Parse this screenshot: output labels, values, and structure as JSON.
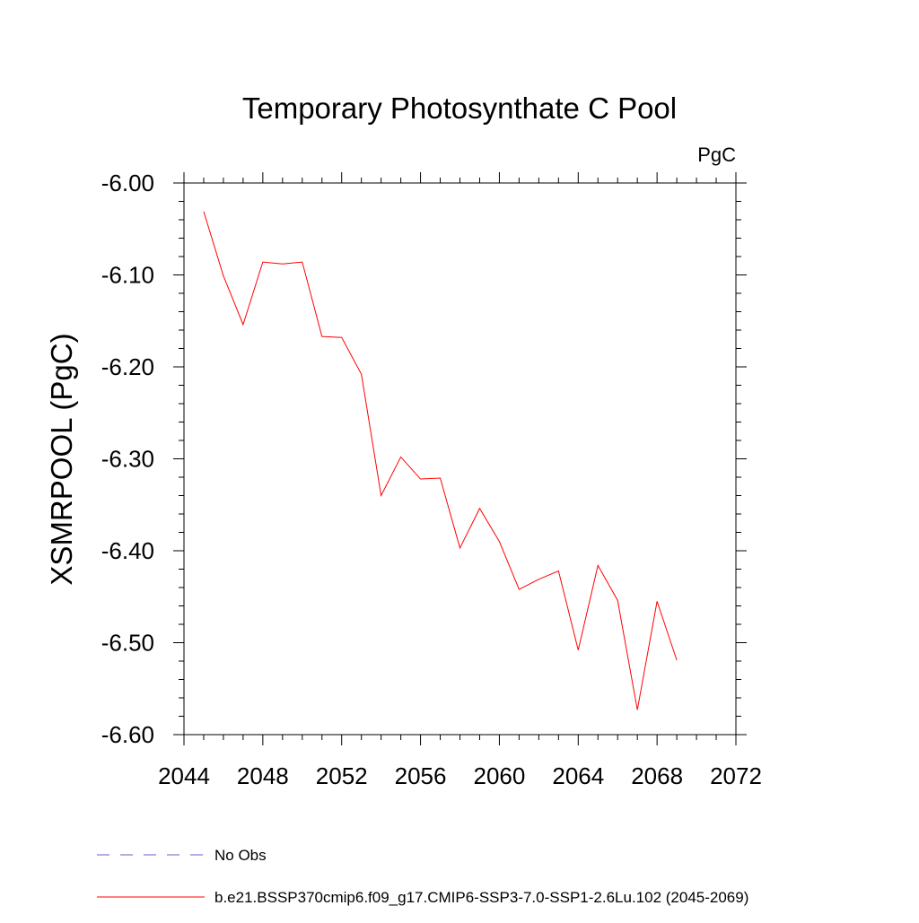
{
  "chart_data": {
    "type": "line",
    "title": "Temporary Photosynthate C Pool",
    "units": "PgC",
    "xlabel": "",
    "ylabel": "XSMRPOOL  (PgC)",
    "xlim": [
      2044,
      2072
    ],
    "ylim": [
      -6.6,
      -6.0
    ],
    "x_ticks": [
      2044,
      2048,
      2052,
      2056,
      2060,
      2064,
      2068,
      2072
    ],
    "x_tick_labels": [
      "2044",
      "2048",
      "2052",
      "2056",
      "2060",
      "2064",
      "2068",
      "2072"
    ],
    "y_ticks": [
      -6.0,
      -6.1,
      -6.2,
      -6.3,
      -6.4,
      -6.5,
      -6.6
    ],
    "y_tick_labels": [
      "-6.00",
      "-6.10",
      "-6.20",
      "-6.30",
      "-6.40",
      "-6.50",
      "-6.60"
    ],
    "grid": false,
    "legend_position": "bottom-left",
    "series": [
      {
        "name": "b.e21.BSSP370cmip6.f09_g17.CMIP6-SSP3-7.0-SSP1-2.6Lu.102 (2045-2069)",
        "color": "#ff0000",
        "style": "solid",
        "x": [
          2045,
          2046,
          2047,
          2048,
          2049,
          2050,
          2051,
          2052,
          2053,
          2054,
          2055,
          2056,
          2057,
          2058,
          2059,
          2060,
          2061,
          2062,
          2063,
          2064,
          2065,
          2066,
          2067,
          2068,
          2069
        ],
        "y": [
          -6.031,
          -6.101,
          -6.154,
          -6.086,
          -6.088,
          -6.086,
          -6.167,
          -6.168,
          -6.208,
          -6.34,
          -6.298,
          -6.322,
          -6.321,
          -6.397,
          -6.354,
          -6.39,
          -6.442,
          -6.431,
          -6.422,
          -6.508,
          -6.416,
          -6.454,
          -6.573,
          -6.455,
          -6.519
        ]
      }
    ],
    "legend": [
      {
        "label": "No Obs",
        "color": "#6a5acd",
        "style": "dashed"
      },
      {
        "label": "b.e21.BSSP370cmip6.f09_g17.CMIP6-SSP3-7.0-SSP1-2.6Lu.102 (2045-2069)",
        "color": "#ff0000",
        "style": "solid"
      }
    ]
  }
}
